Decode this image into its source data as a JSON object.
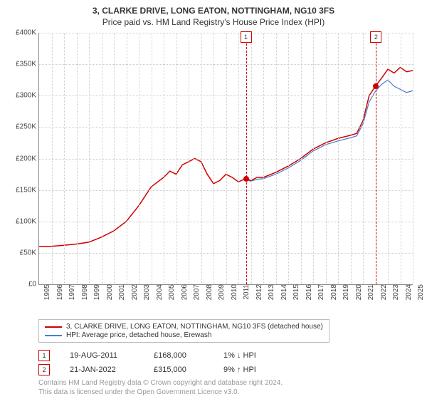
{
  "title": "3, CLARKE DRIVE, LONG EATON, NOTTINGHAM, NG10 3FS",
  "subtitle": "Price paid vs. HM Land Registry's House Price Index (HPI)",
  "chart": {
    "type": "line",
    "ylim": [
      0,
      400000
    ],
    "ytick_step": 50000,
    "yticks": [
      "£0",
      "£50K",
      "£100K",
      "£150K",
      "£200K",
      "£250K",
      "£300K",
      "£350K",
      "£400K"
    ],
    "xlim": [
      1995,
      2025
    ],
    "xticks": [
      "1995",
      "1996",
      "1997",
      "1998",
      "1999",
      "2000",
      "2001",
      "2002",
      "2003",
      "2004",
      "2005",
      "2006",
      "2007",
      "2008",
      "2009",
      "2010",
      "2011",
      "2012",
      "2013",
      "2014",
      "2015",
      "2016",
      "2017",
      "2018",
      "2019",
      "2020",
      "2021",
      "2022",
      "2023",
      "2024",
      "2025"
    ],
    "background_color": "#ffffff",
    "grid_color": "#cccccc",
    "axis_color": "#888888",
    "series": {
      "price_paid": {
        "label": "3, CLARKE DRIVE, LONG EATON, NOTTINGHAM, NG10 3FS (detached house)",
        "color": "#d00000",
        "width": 1.5,
        "data": [
          [
            1995,
            60000
          ],
          [
            1996,
            60500
          ],
          [
            1997,
            62000
          ],
          [
            1998,
            64000
          ],
          [
            1999,
            67000
          ],
          [
            2000,
            75000
          ],
          [
            2001,
            85000
          ],
          [
            2002,
            100000
          ],
          [
            2003,
            125000
          ],
          [
            2004,
            155000
          ],
          [
            2005,
            170000
          ],
          [
            2005.5,
            180000
          ],
          [
            2006,
            175000
          ],
          [
            2006.5,
            190000
          ],
          [
            2007,
            195000
          ],
          [
            2007.5,
            200000
          ],
          [
            2008,
            195000
          ],
          [
            2008.5,
            175000
          ],
          [
            2009,
            160000
          ],
          [
            2009.5,
            165000
          ],
          [
            2010,
            175000
          ],
          [
            2010.5,
            170000
          ],
          [
            2011,
            163000
          ],
          [
            2011.6,
            168000
          ],
          [
            2012,
            165000
          ],
          [
            2012.5,
            170000
          ],
          [
            2013,
            170000
          ],
          [
            2014,
            178000
          ],
          [
            2015,
            188000
          ],
          [
            2016,
            200000
          ],
          [
            2017,
            215000
          ],
          [
            2018,
            225000
          ],
          [
            2019,
            232000
          ],
          [
            2020,
            237000
          ],
          [
            2020.5,
            240000
          ],
          [
            2021,
            260000
          ],
          [
            2021.5,
            300000
          ],
          [
            2022,
            315000
          ],
          [
            2022.5,
            328000
          ],
          [
            2023,
            342000
          ],
          [
            2023.5,
            336000
          ],
          [
            2024,
            345000
          ],
          [
            2024.5,
            338000
          ],
          [
            2025,
            340000
          ]
        ]
      },
      "hpi": {
        "label": "HPI: Average price, detached house, Erewash",
        "color": "#4a7ec8",
        "width": 1.2,
        "start_x": 2011.6,
        "data": [
          [
            2011.6,
            166000
          ],
          [
            2012,
            164000
          ],
          [
            2012.5,
            167000
          ],
          [
            2013,
            168000
          ],
          [
            2014,
            175000
          ],
          [
            2015,
            185000
          ],
          [
            2016,
            197000
          ],
          [
            2017,
            212000
          ],
          [
            2018,
            222000
          ],
          [
            2019,
            228000
          ],
          [
            2020,
            233000
          ],
          [
            2020.5,
            236000
          ],
          [
            2021,
            255000
          ],
          [
            2021.5,
            290000
          ],
          [
            2022,
            307000
          ],
          [
            2022.5,
            318000
          ],
          [
            2023,
            325000
          ],
          [
            2023.5,
            315000
          ],
          [
            2024,
            310000
          ],
          [
            2024.5,
            305000
          ],
          [
            2025,
            308000
          ]
        ]
      }
    },
    "markers": [
      {
        "n": "1",
        "x": 2011.6,
        "y": 168000
      },
      {
        "n": "2",
        "x": 2022.05,
        "y": 315000
      }
    ]
  },
  "legend": {
    "border_color": "#bbbbbb"
  },
  "sales": [
    {
      "n": "1",
      "date": "19-AUG-2011",
      "price": "£168,000",
      "diff": "1% ↓ HPI"
    },
    {
      "n": "2",
      "date": "21-JAN-2022",
      "price": "£315,000",
      "diff": "9% ↑ HPI"
    }
  ],
  "footer": {
    "line1": "Contains HM Land Registry data © Crown copyright and database right 2024.",
    "line2": "This data is licensed under the Open Government Licence v3.0."
  },
  "style": {
    "title_fontsize": 12,
    "label_fontsize": 10,
    "tick_fontsize": 10,
    "footer_color": "#999999",
    "marker_border": "#d00000"
  }
}
